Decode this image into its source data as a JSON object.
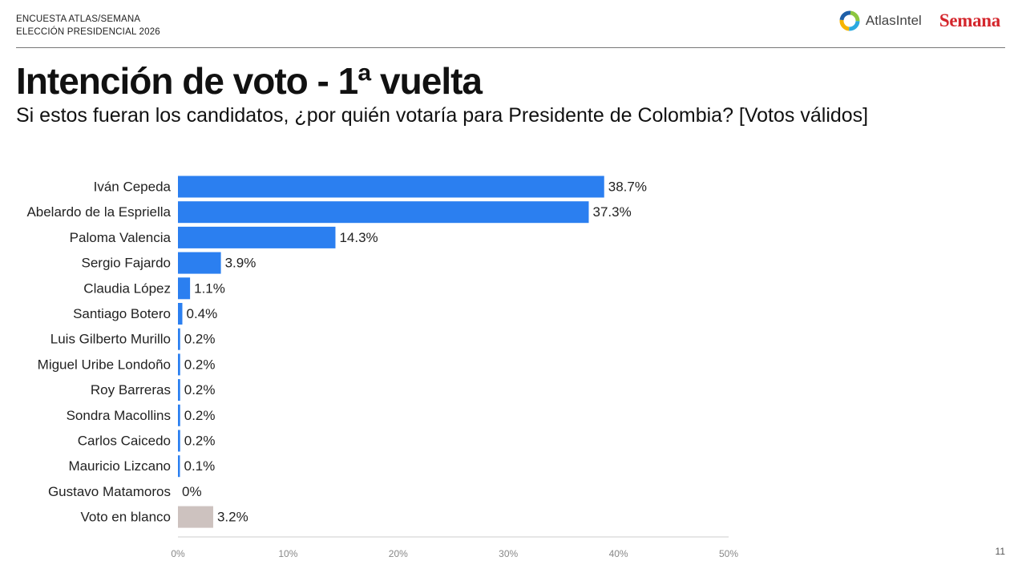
{
  "header": {
    "survey_line1": "ENCUESTA ATLAS/SEMANA",
    "survey_line2": "ELECCIÓN PRESIDENCIAL 2026",
    "logo_atlas": "AtlasIntel",
    "logo_semana": "Semana"
  },
  "title": "Intención de voto - 1ª vuelta",
  "subtitle": "Si estos fueran los candidatos, ¿por quién votaría para Presidente de Colombia? [Votos válidos]",
  "page_number": "11",
  "colors": {
    "bar": "#2b7ff0",
    "blank_bar": "#cdc2bf",
    "axis": "#cccccc",
    "tick": "#888888"
  },
  "chart_data": {
    "type": "bar",
    "orientation": "horizontal",
    "categories": [
      "Iván Cepeda",
      "Abelardo de la Espriella",
      "Paloma Valencia",
      "Sergio Fajardo",
      "Claudia López",
      "Santiago Botero",
      "Luis Gilberto Murillo",
      "Miguel Uribe Londoño",
      "Roy Barreras",
      "Sondra Macollins",
      "Carlos Caicedo",
      "Mauricio Lizcano",
      "Gustavo Matamoros",
      "Voto en blanco"
    ],
    "values": [
      38.7,
      37.3,
      14.3,
      3.9,
      1.1,
      0.4,
      0.2,
      0.2,
      0.2,
      0.2,
      0.2,
      0.1,
      0,
      3.2
    ],
    "value_labels": [
      "38.7%",
      "37.3%",
      "14.3%",
      "3.9%",
      "1.1%",
      "0.4%",
      "0.2%",
      "0.2%",
      "0.2%",
      "0.2%",
      "0.2%",
      "0.1%",
      "0%",
      "3.2%"
    ],
    "highlight_category": "Voto en blanco",
    "xlim": [
      0,
      50
    ],
    "x_ticks": [
      0,
      10,
      20,
      30,
      40,
      50
    ],
    "x_tick_labels": [
      "0%",
      "10%",
      "20%",
      "30%",
      "40%",
      "50%"
    ],
    "grid": false
  }
}
